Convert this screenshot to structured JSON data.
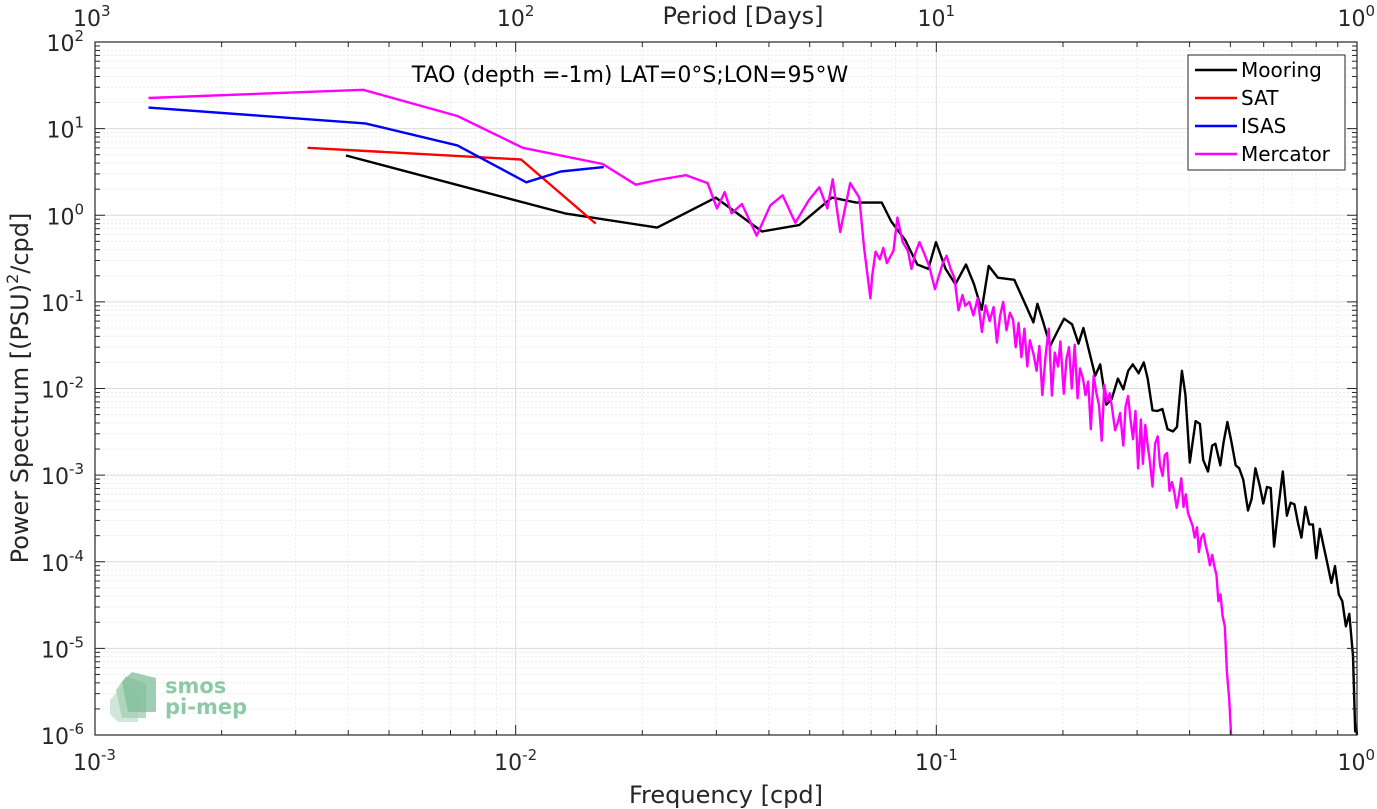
{
  "chart_data": {
    "type": "line",
    "title": "TAO (depth =-1m) LAT=0°S;LON=95°W",
    "xlabel": "Frequency [cpd]",
    "ylabel": "Power Spectrum [(PSU)²/cpd]",
    "ylabel_main": "Power Spectrum [(PSU)",
    "ylabel_sup": "2",
    "ylabel_tail": "/cpd]",
    "top_xlabel": "Period [Days]",
    "x_scale": "log",
    "y_scale": "log",
    "xlim": [
      0.001,
      1
    ],
    "ylim": [
      1e-06,
      100
    ],
    "grid": true,
    "legend_position": "top-right",
    "x_ticks": [
      {
        "value": 0.001,
        "base": "10",
        "exp": "-3"
      },
      {
        "value": 0.01,
        "base": "10",
        "exp": "-2"
      },
      {
        "value": 0.1,
        "base": "10",
        "exp": "-1"
      },
      {
        "value": 1,
        "base": "10",
        "exp": "0"
      }
    ],
    "top_ticks": [
      {
        "value": 0.001,
        "base": "10",
        "exp": "3"
      },
      {
        "value": 0.01,
        "base": "10",
        "exp": "2"
      },
      {
        "value": 0.1,
        "base": "10",
        "exp": "1"
      },
      {
        "value": 1,
        "base": "10",
        "exp": "0"
      }
    ],
    "y_ticks": [
      {
        "value": 100,
        "base": "10",
        "exp": "2"
      },
      {
        "value": 10,
        "base": "10",
        "exp": "1"
      },
      {
        "value": 1,
        "base": "10",
        "exp": "0"
      },
      {
        "value": 0.1,
        "base": "10",
        "exp": "-1"
      },
      {
        "value": 0.01,
        "base": "10",
        "exp": "-2"
      },
      {
        "value": 0.001,
        "base": "10",
        "exp": "-3"
      },
      {
        "value": 0.0001,
        "base": "10",
        "exp": "-4"
      },
      {
        "value": 1e-05,
        "base": "10",
        "exp": "-5"
      },
      {
        "value": 1e-06,
        "base": "10",
        "exp": "-6"
      }
    ],
    "series": [
      {
        "name": "Mooring",
        "color": "#000000",
        "points": [
          [
            0.00395,
            4.9
          ],
          [
            0.0131,
            1.05
          ],
          [
            0.0217,
            0.72
          ],
          [
            0.0299,
            1.6
          ],
          [
            0.0385,
            0.65
          ],
          [
            0.0472,
            0.77
          ],
          [
            0.0565,
            1.6
          ],
          [
            0.0645,
            1.4
          ],
          [
            0.0742,
            1.4
          ],
          [
            0.0781,
            0.85
          ],
          [
            0.0843,
            0.52
          ],
          [
            0.0901,
            0.27
          ],
          [
            0.0957,
            0.24
          ],
          [
            0.0998,
            0.49
          ],
          [
            0.1052,
            0.24
          ],
          [
            0.111,
            0.16
          ],
          [
            0.1176,
            0.27
          ],
          [
            0.1229,
            0.16
          ],
          [
            0.1282,
            0.081
          ],
          [
            0.1332,
            0.26
          ],
          [
            0.1401,
            0.19
          ],
          [
            0.1532,
            0.18
          ],
          [
            0.1621,
            0.098
          ],
          [
            0.1701,
            0.058
          ],
          [
            0.1739,
            0.095
          ],
          [
            0.1794,
            0.059
          ],
          [
            0.1865,
            0.031
          ],
          [
            0.1938,
            0.045
          ],
          [
            0.2012,
            0.064
          ],
          [
            0.2103,
            0.055
          ],
          [
            0.2178,
            0.033
          ],
          [
            0.2237,
            0.05
          ],
          [
            0.2304,
            0.028
          ],
          [
            0.2386,
            0.014
          ],
          [
            0.2452,
            0.019
          ],
          [
            0.2535,
            0.0065
          ],
          [
            0.2613,
            0.0076
          ],
          [
            0.2702,
            0.013
          ],
          [
            0.2782,
            0.0098
          ],
          [
            0.2858,
            0.016
          ],
          [
            0.2931,
            0.019
          ],
          [
            0.3026,
            0.015
          ],
          [
            0.3113,
            0.02
          ],
          [
            0.3181,
            0.013
          ],
          [
            0.3264,
            0.0056
          ],
          [
            0.3351,
            0.0055
          ],
          [
            0.3447,
            0.0058
          ],
          [
            0.3545,
            0.0034
          ],
          [
            0.3653,
            0.0032
          ],
          [
            0.3734,
            0.0036
          ],
          [
            0.3835,
            0.016
          ],
          [
            0.3909,
            0.0085
          ],
          [
            0.4004,
            0.0014
          ],
          [
            0.4134,
            0.0042
          ],
          [
            0.4233,
            0.0039
          ],
          [
            0.4309,
            0.0015
          ],
          [
            0.4425,
            0.0011
          ],
          [
            0.4526,
            0.0022
          ],
          [
            0.4606,
            0.0023
          ],
          [
            0.4732,
            0.0013
          ],
          [
            0.4817,
            0.0024
          ],
          [
            0.4919,
            0.0041
          ],
          [
            0.5032,
            0.0024
          ],
          [
            0.5149,
            0.0013
          ],
          [
            0.5247,
            0.0012
          ],
          [
            0.5368,
            0.00088
          ],
          [
            0.5506,
            0.00039
          ],
          [
            0.5616,
            0.00053
          ],
          [
            0.5733,
            0.0012
          ],
          [
            0.5869,
            0.00077
          ],
          [
            0.5988,
            0.00047
          ],
          [
            0.6109,
            0.00073
          ],
          [
            0.6236,
            0.00071
          ],
          [
            0.6352,
            0.00015
          ],
          [
            0.6497,
            0.00041
          ],
          [
            0.6663,
            0.0011
          ],
          [
            0.6813,
            0.00034
          ],
          [
            0.6951,
            0.00048
          ],
          [
            0.7098,
            0.00046
          ],
          [
            0.7241,
            0.00028
          ],
          [
            0.7377,
            0.00019
          ],
          [
            0.7539,
            0.00043
          ],
          [
            0.7699,
            0.00027
          ],
          [
            0.7856,
            0.00027
          ],
          [
            0.8004,
            0.00011
          ],
          [
            0.8163,
            0.00024
          ],
          [
            0.8333,
            0.00015
          ],
          [
            0.8509,
            9.4e-05
          ],
          [
            0.8692,
            5.7e-05
          ],
          [
            0.8867,
            8.9e-05
          ],
          [
            0.905,
            4.2e-05
          ],
          [
            0.9229,
            3.5e-05
          ],
          [
            0.9411,
            1.8e-05
          ],
          [
            0.9585,
            2.5e-05
          ],
          [
            0.9786,
            8.2e-06
          ],
          [
            0.9904,
            1.1e-06
          ],
          [
            0.9955,
            1.3e-06
          ],
          [
            1,
            1e-06
          ]
        ]
      },
      {
        "name": "SAT",
        "color": "#ff0000",
        "points": [
          [
            0.0032,
            6
          ],
          [
            0.0103,
            4.4
          ],
          [
            0.0155,
            0.8
          ]
        ]
      },
      {
        "name": "ISAS",
        "color": "#0000ff",
        "points": [
          [
            0.00134,
            17.5
          ],
          [
            0.00439,
            11.5
          ],
          [
            0.00727,
            6.4
          ],
          [
            0.0106,
            2.4
          ],
          [
            0.0128,
            3.2
          ],
          [
            0.0162,
            3.6
          ]
        ]
      },
      {
        "name": "Mercator",
        "color": "#ff00ff",
        "points": [
          [
            0.00134,
            22.6
          ],
          [
            0.00434,
            28.1
          ],
          [
            0.00727,
            14
          ],
          [
            0.0104,
            6
          ],
          [
            0.0161,
            3.9
          ],
          [
            0.0193,
            2.25
          ],
          [
            0.0217,
            2.55
          ],
          [
            0.0254,
            2.9
          ],
          [
            0.0286,
            2.35
          ],
          [
            0.0301,
            1.2
          ],
          [
            0.0314,
            1.85
          ],
          [
            0.0326,
            1.05
          ],
          [
            0.0345,
            1.35
          ],
          [
            0.0374,
            0.58
          ],
          [
            0.0403,
            1.3
          ],
          [
            0.0431,
            1.7
          ],
          [
            0.0462,
            0.82
          ],
          [
            0.0498,
            1.5
          ],
          [
            0.0527,
            2.1
          ],
          [
            0.0551,
            1.2
          ],
          [
            0.0567,
            2.6
          ],
          [
            0.0591,
            0.64
          ],
          [
            0.0624,
            2.35
          ],
          [
            0.0656,
            1.6
          ],
          [
            0.0673,
            0.43
          ],
          [
            0.0697,
            0.11
          ],
          [
            0.0704,
            0.2
          ],
          [
            0.0717,
            0.38
          ],
          [
            0.0734,
            0.31
          ],
          [
            0.0748,
            0.42
          ],
          [
            0.0763,
            0.28
          ],
          [
            0.0791,
            0.39
          ],
          [
            0.0808,
            0.94
          ],
          [
            0.0832,
            0.49
          ],
          [
            0.0856,
            0.39
          ],
          [
            0.0873,
            0.24
          ],
          [
            0.0892,
            0.37
          ],
          [
            0.0912,
            0.49
          ],
          [
            0.0936,
            0.36
          ],
          [
            0.0961,
            0.26
          ],
          [
            0.0993,
            0.14
          ],
          [
            0.1014,
            0.2
          ],
          [
            0.1036,
            0.28
          ],
          [
            0.1058,
            0.34
          ],
          [
            0.1081,
            0.24
          ],
          [
            0.1104,
            0.19
          ],
          [
            0.1129,
            0.08
          ],
          [
            0.1154,
            0.12
          ],
          [
            0.1171,
            0.09
          ],
          [
            0.1198,
            0.1
          ],
          [
            0.1225,
            0.07
          ],
          [
            0.1254,
            0.11
          ],
          [
            0.1283,
            0.045
          ],
          [
            0.1309,
            0.091
          ],
          [
            0.1339,
            0.06
          ],
          [
            0.1368,
            0.087
          ],
          [
            0.1393,
            0.034
          ],
          [
            0.1418,
            0.069
          ],
          [
            0.1442,
            0.1
          ],
          [
            0.1468,
            0.047
          ],
          [
            0.1496,
            0.075
          ],
          [
            0.1522,
            0.062
          ],
          [
            0.1544,
            0.03
          ],
          [
            0.1569,
            0.057
          ],
          [
            0.1593,
            0.023
          ],
          [
            0.1619,
            0.049
          ],
          [
            0.1645,
            0.018
          ],
          [
            0.1669,
            0.036
          ],
          [
            0.1702,
            0.025
          ],
          [
            0.1731,
            0.016
          ],
          [
            0.1758,
            0.031
          ],
          [
            0.1786,
            0.0084
          ],
          [
            0.1822,
            0.026
          ],
          [
            0.1851,
            0.049
          ],
          [
            0.1882,
            0.0083
          ],
          [
            0.1913,
            0.026
          ],
          [
            0.1946,
            0.018
          ],
          [
            0.1972,
            0.035
          ],
          [
            0.2009,
            0.0087
          ],
          [
            0.2039,
            0.022
          ],
          [
            0.2067,
            0.03
          ],
          [
            0.2099,
            0.01
          ],
          [
            0.2133,
            0.032
          ],
          [
            0.2167,
            0.0077
          ],
          [
            0.2196,
            0.017
          ],
          [
            0.2232,
            0.013
          ],
          [
            0.2262,
            0.0084
          ],
          [
            0.2296,
            0.012
          ],
          [
            0.2329,
            0.0034
          ],
          [
            0.2366,
            0.014
          ],
          [
            0.24,
            0.009
          ],
          [
            0.2436,
            0.0064
          ],
          [
            0.2472,
            0.0025
          ],
          [
            0.2508,
            0.011
          ],
          [
            0.2546,
            0.0071
          ],
          [
            0.2585,
            0.0088
          ],
          [
            0.2619,
            0.0058
          ],
          [
            0.2661,
            0.0033
          ],
          [
            0.2703,
            0.0041
          ],
          [
            0.2735,
            0.0052
          ],
          [
            0.2782,
            0.0022
          ],
          [
            0.2818,
            0.0062
          ],
          [
            0.2857,
            0.0082
          ],
          [
            0.2895,
            0.0044
          ],
          [
            0.2935,
            0.0026
          ],
          [
            0.2975,
            0.0055
          ],
          [
            0.3017,
            0.0012
          ],
          [
            0.3064,
            0.0044
          ],
          [
            0.3097,
            0.00135
          ],
          [
            0.3139,
            0.0038
          ],
          [
            0.3176,
            0.0023
          ],
          [
            0.322,
            0.0014
          ],
          [
            0.3265,
            0.00074
          ],
          [
            0.3312,
            0.0023
          ],
          [
            0.3359,
            0.0028
          ],
          [
            0.3402,
            0.0013
          ],
          [
            0.3451,
            0.00098
          ],
          [
            0.3493,
            0.0017
          ],
          [
            0.3536,
            0.0018
          ],
          [
            0.3584,
            0.00066
          ],
          [
            0.3631,
            0.00083
          ],
          [
            0.3672,
            0.00067
          ],
          [
            0.3728,
            0.00042
          ],
          [
            0.3772,
            0.00058
          ],
          [
            0.3822,
            0.00092
          ],
          [
            0.3869,
            0.00043
          ],
          [
            0.3918,
            0.0006
          ],
          [
            0.3962,
            0.00037
          ],
          [
            0.4013,
            0.00031
          ],
          [
            0.4066,
            0.00026
          ],
          [
            0.4114,
            0.00019
          ],
          [
            0.4166,
            0.00025
          ],
          [
            0.421,
            0.00013
          ],
          [
            0.4265,
            0.00019
          ],
          [
            0.4316,
            0.00021
          ],
          [
            0.4361,
            0.00016
          ],
          [
            0.4424,
            0.00012
          ],
          [
            0.4471,
            9.1e-05
          ],
          [
            0.4527,
            0.00012
          ],
          [
            0.4585,
            8.7e-05
          ],
          [
            0.4634,
            7e-05
          ],
          [
            0.4683,
            3.5e-05
          ],
          [
            0.4736,
            4.2e-05
          ],
          [
            0.4788,
            2.4e-05
          ],
          [
            0.485,
            1.8e-05
          ],
          [
            0.4906,
            5.4e-06
          ],
          [
            0.4968,
            2.6e-06
          ],
          [
            0.502,
            1e-06
          ]
        ]
      }
    ]
  },
  "logo": {
    "line1": "smos",
    "line2": "pi-mep"
  }
}
